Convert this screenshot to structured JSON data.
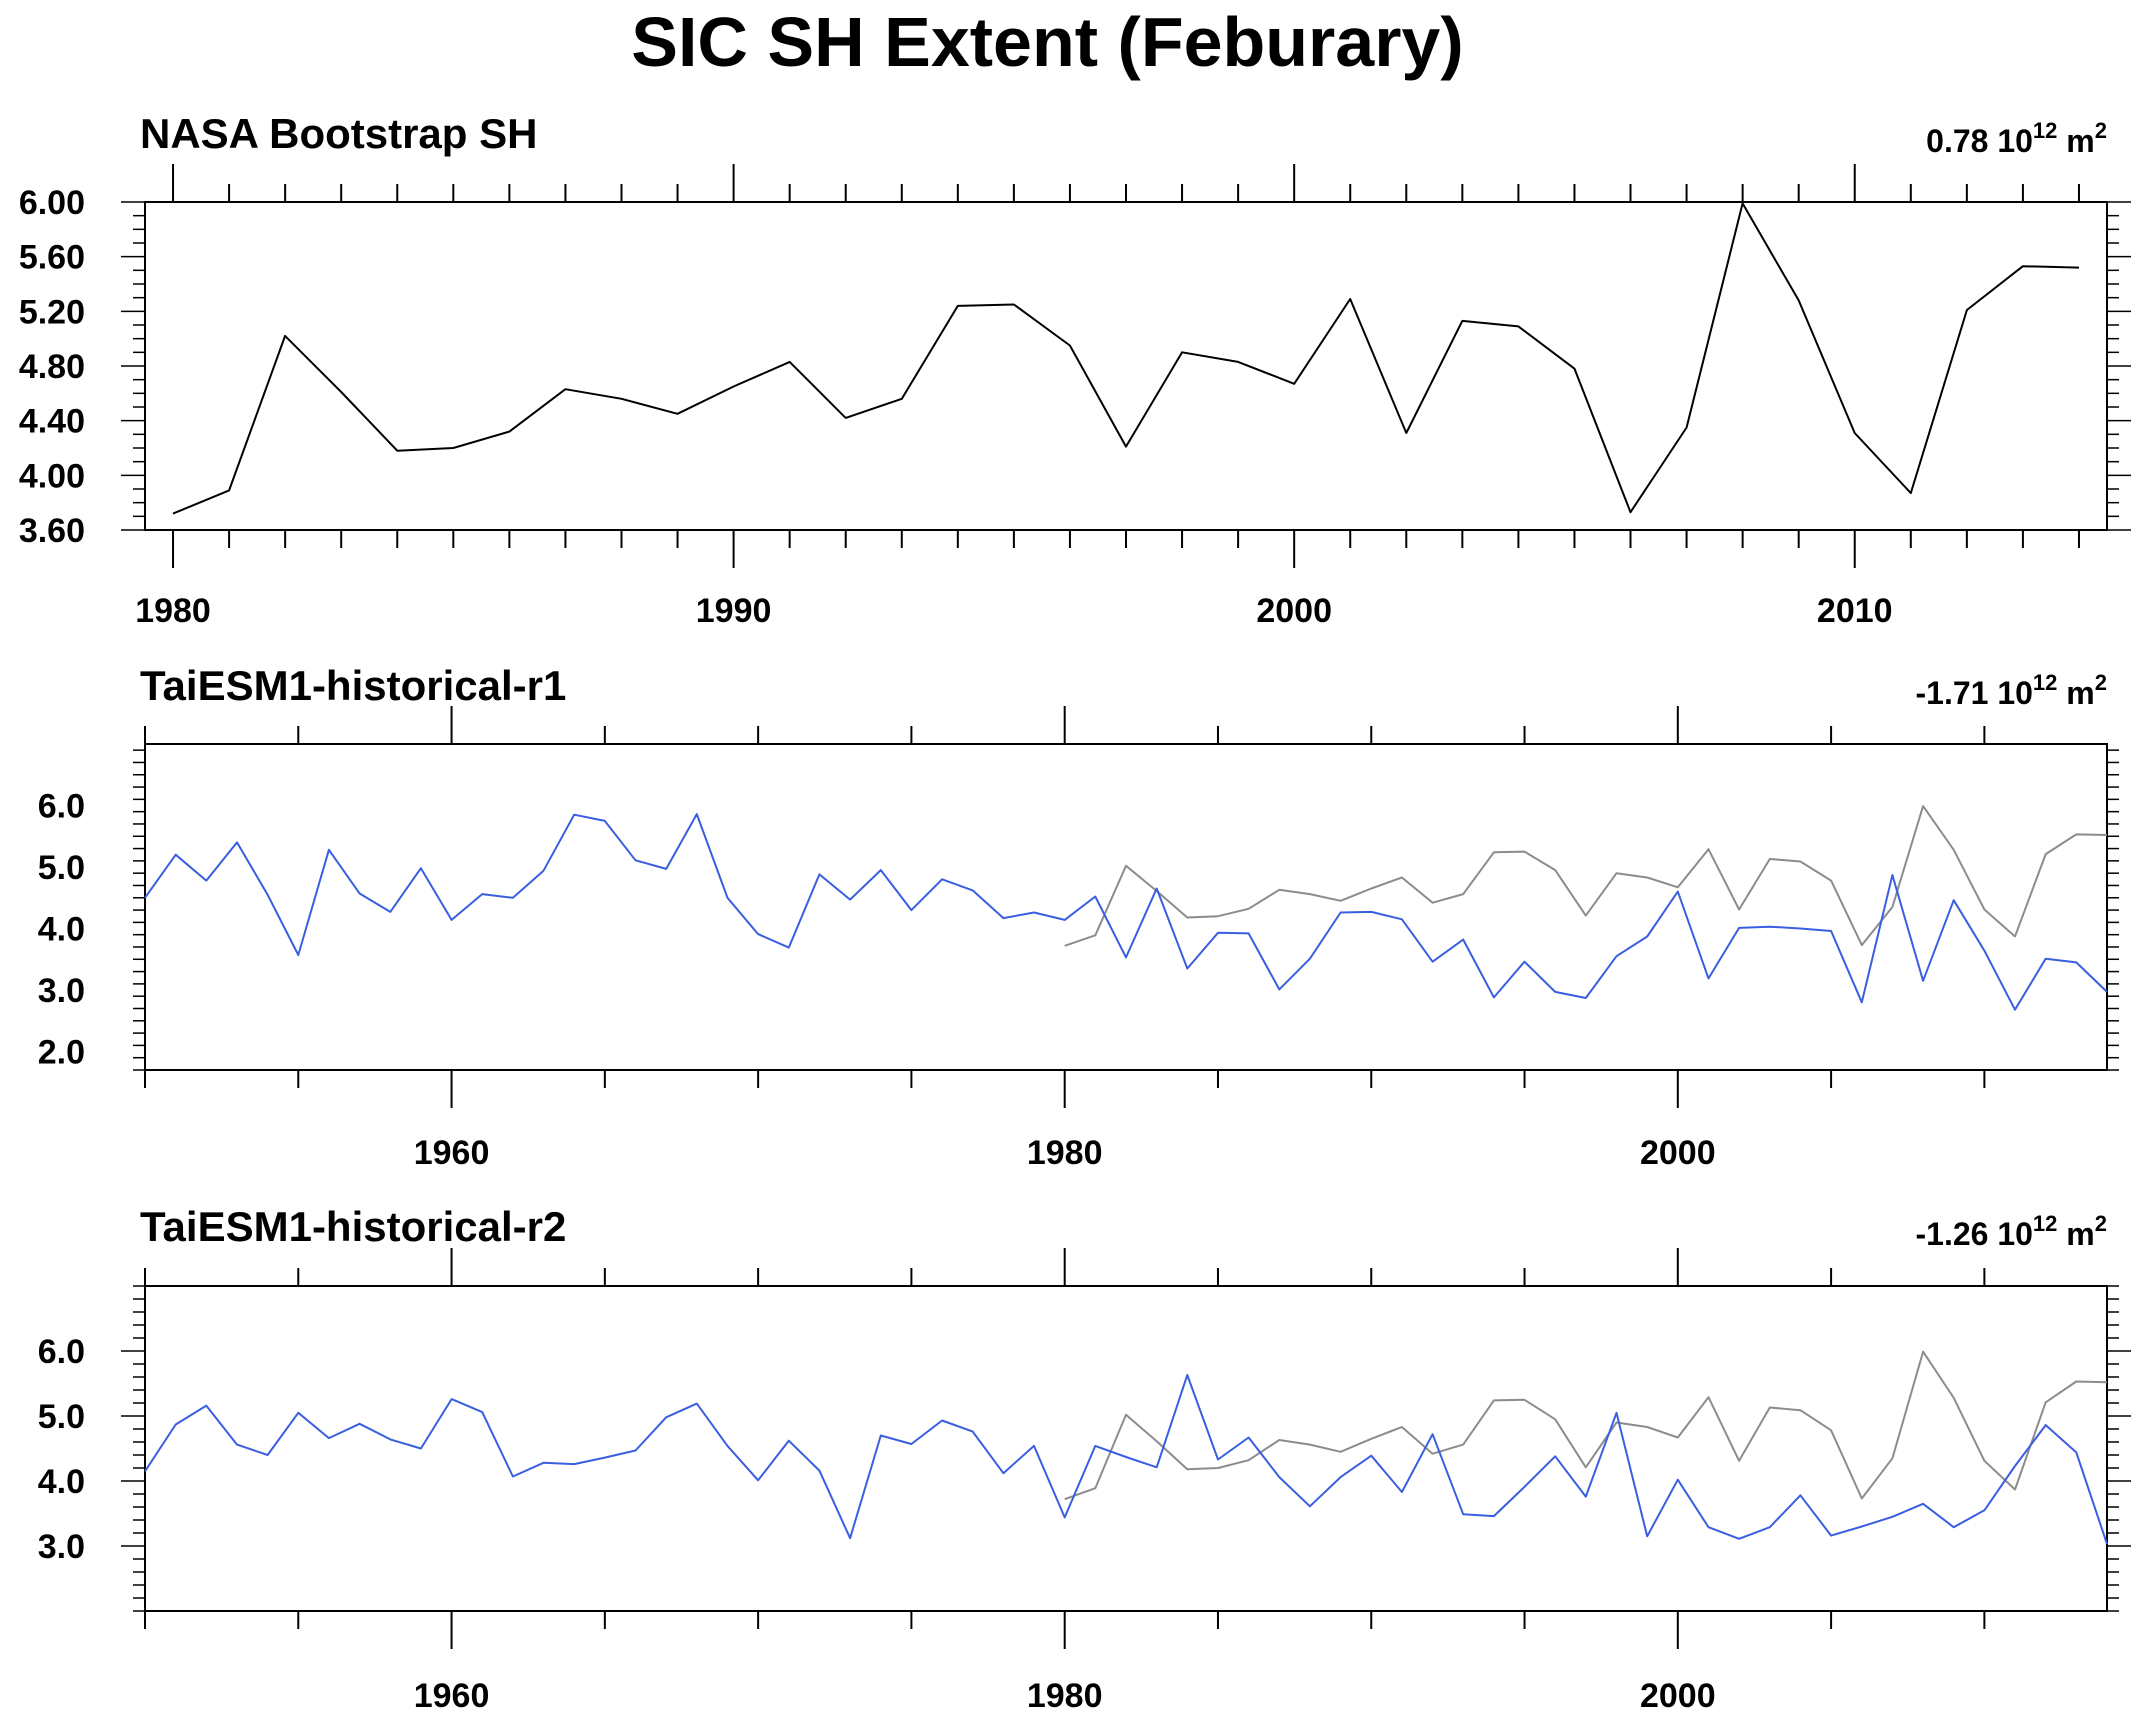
{
  "title": "SIC SH Extent (Feburary)",
  "colors": {
    "observed": "#000000",
    "observed_ref": "#8c8c8c",
    "model": "#3a5ee0"
  },
  "chart_data": [
    {
      "type": "line",
      "title": "NASA Bootstrap SH",
      "trend_label": {
        "value": "0.78 10",
        "exponent_text": "12",
        "unit": " m",
        "unit_exp": "2"
      },
      "xlim": [
        1980,
        2014
      ],
      "ylim": [
        3.6,
        6.0
      ],
      "yticks": [
        3.6,
        4.0,
        4.4,
        4.8,
        5.2,
        5.6,
        6.0
      ],
      "ytick_labels": [
        "3.60",
        "4.00",
        "4.40",
        "4.80",
        "5.20",
        "5.60",
        "6.00"
      ],
      "xticks": [
        1980,
        1990,
        2000,
        2010
      ],
      "xtick_labels": [
        "1980",
        "1990",
        "2000",
        "2010"
      ],
      "series": [
        {
          "color_key": "observed",
          "x": [
            1980,
            1981,
            1982,
            1983,
            1984,
            1985,
            1986,
            1987,
            1988,
            1989,
            1990,
            1991,
            1992,
            1993,
            1994,
            1995,
            1996,
            1997,
            1998,
            1999,
            2000,
            2001,
            2002,
            2003,
            2004,
            2005,
            2006,
            2007,
            2008,
            2009,
            2010,
            2011,
            2012,
            2013,
            2014
          ],
          "values": [
            3.72,
            3.89,
            5.02,
            4.61,
            4.18,
            4.2,
            4.32,
            4.63,
            4.56,
            4.45,
            4.65,
            4.83,
            4.42,
            4.56,
            5.24,
            5.25,
            4.95,
            4.21,
            4.9,
            4.83,
            4.67,
            5.29,
            4.31,
            5.13,
            5.09,
            4.78,
            3.73,
            4.35,
            5.99,
            5.28,
            4.31,
            3.87,
            5.21,
            5.53,
            5.52
          ]
        }
      ]
    },
    {
      "type": "line",
      "title": "TaiESM1-historical-r1",
      "trend_label": {
        "value": "-1.71 10",
        "exponent_text": "12",
        "unit": " m",
        "unit_exp": "2"
      },
      "xlim": [
        1950,
        2014
      ],
      "ylim": [
        1.7,
        7.0
      ],
      "yticks": [
        2.0,
        3.0,
        4.0,
        5.0,
        6.0
      ],
      "ytick_labels": [
        "2.0",
        "3.0",
        "4.0",
        "5.0",
        "6.0"
      ],
      "xticks": [
        1960,
        1980,
        2000
      ],
      "xtick_labels": [
        "1960",
        "1980",
        "2000"
      ],
      "series": [
        {
          "color_key": "model",
          "x": [
            1950,
            1951,
            1952,
            1953,
            1954,
            1955,
            1956,
            1957,
            1958,
            1959,
            1960,
            1961,
            1962,
            1963,
            1964,
            1965,
            1966,
            1967,
            1968,
            1969,
            1970,
            1971,
            1972,
            1973,
            1974,
            1975,
            1976,
            1977,
            1978,
            1979,
            1980,
            1981,
            1982,
            1983,
            1984,
            1985,
            1986,
            1987,
            1988,
            1989,
            1990,
            1991,
            1992,
            1993,
            1994,
            1995,
            1996,
            1997,
            1998,
            1999,
            2000,
            2001,
            2002,
            2003,
            2004,
            2005,
            2006,
            2007,
            2008,
            2009,
            2010,
            2011,
            2012,
            2013,
            2014
          ],
          "values": [
            4.5,
            5.2,
            4.78,
            5.4,
            4.55,
            3.57,
            5.28,
            4.57,
            4.27,
            4.98,
            4.14,
            4.56,
            4.5,
            4.94,
            5.85,
            5.75,
            5.11,
            4.97,
            5.86,
            4.5,
            3.91,
            3.69,
            4.88,
            4.47,
            4.95,
            4.3,
            4.8,
            4.62,
            4.17,
            4.26,
            4.14,
            4.52,
            3.53,
            4.65,
            3.35,
            3.93,
            3.92,
            3.01,
            3.51,
            4.26,
            4.27,
            4.15,
            3.46,
            3.82,
            2.88,
            3.46,
            2.97,
            2.87,
            3.55,
            3.87,
            4.6,
            3.19,
            4.01,
            4.03,
            4.0,
            3.96,
            2.8,
            4.87,
            3.15,
            4.46,
            3.64,
            2.68,
            3.51,
            3.45,
            2.97
          ]
        },
        {
          "color_key": "observed_ref",
          "x": [
            1980,
            1981,
            1982,
            1983,
            1984,
            1985,
            1986,
            1987,
            1988,
            1989,
            1990,
            1991,
            1992,
            1993,
            1994,
            1995,
            1996,
            1997,
            1998,
            1999,
            2000,
            2001,
            2002,
            2003,
            2004,
            2005,
            2006,
            2007,
            2008,
            2009,
            2010,
            2011,
            2012,
            2013,
            2014
          ],
          "values": [
            3.72,
            3.89,
            5.02,
            4.61,
            4.18,
            4.2,
            4.32,
            4.63,
            4.56,
            4.45,
            4.65,
            4.83,
            4.42,
            4.56,
            5.24,
            5.25,
            4.95,
            4.21,
            4.9,
            4.83,
            4.67,
            5.29,
            4.31,
            5.13,
            5.09,
            4.78,
            3.73,
            4.35,
            5.99,
            5.28,
            4.31,
            3.87,
            5.21,
            5.53,
            5.52
          ]
        }
      ]
    },
    {
      "type": "line",
      "title": "TaiESM1-historical-r2",
      "trend_label": {
        "value": "-1.26 10",
        "exponent_text": "12",
        "unit": " m",
        "unit_exp": "2"
      },
      "xlim": [
        1950,
        2014
      ],
      "ylim": [
        2.0,
        7.0
      ],
      "yticks": [
        3.0,
        4.0,
        5.0,
        6.0
      ],
      "ytick_labels": [
        "3.0",
        "4.0",
        "5.0",
        "6.0"
      ],
      "xticks": [
        1960,
        1980,
        2000
      ],
      "xtick_labels": [
        "1960",
        "1980",
        "2000"
      ],
      "series": [
        {
          "color_key": "model",
          "x": [
            1950,
            1951,
            1952,
            1953,
            1954,
            1955,
            1956,
            1957,
            1958,
            1959,
            1960,
            1961,
            1962,
            1963,
            1964,
            1965,
            1966,
            1967,
            1968,
            1969,
            1970,
            1971,
            1972,
            1973,
            1974,
            1975,
            1976,
            1977,
            1978,
            1979,
            1980,
            1981,
            1982,
            1983,
            1984,
            1985,
            1986,
            1987,
            1988,
            1989,
            1990,
            1991,
            1992,
            1993,
            1994,
            1995,
            1996,
            1997,
            1998,
            1999,
            2000,
            2001,
            2002,
            2003,
            2004,
            2005,
            2006,
            2007,
            2008,
            2009,
            2010,
            2011,
            2012,
            2013,
            2014
          ],
          "values": [
            4.15,
            4.87,
            5.16,
            4.56,
            4.4,
            5.05,
            4.66,
            4.88,
            4.64,
            4.5,
            5.26,
            5.06,
            4.07,
            4.28,
            4.26,
            4.36,
            4.47,
            4.98,
            5.19,
            4.54,
            4.01,
            4.62,
            4.16,
            3.12,
            4.7,
            4.57,
            4.93,
            4.76,
            4.12,
            4.54,
            3.44,
            4.54,
            4.37,
            4.21,
            5.63,
            4.33,
            4.67,
            4.06,
            3.61,
            4.06,
            4.39,
            3.83,
            4.72,
            3.49,
            3.46,
            3.91,
            4.38,
            3.76,
            5.05,
            3.15,
            4.02,
            3.29,
            3.11,
            3.29,
            3.78,
            3.16,
            3.3,
            3.45,
            3.65,
            3.29,
            3.55,
            4.23,
            4.86,
            4.44,
            3.03
          ]
        },
        {
          "color_key": "observed_ref",
          "x": [
            1980,
            1981,
            1982,
            1983,
            1984,
            1985,
            1986,
            1987,
            1988,
            1989,
            1990,
            1991,
            1992,
            1993,
            1994,
            1995,
            1996,
            1997,
            1998,
            1999,
            2000,
            2001,
            2002,
            2003,
            2004,
            2005,
            2006,
            2007,
            2008,
            2009,
            2010,
            2011,
            2012,
            2013,
            2014
          ],
          "values": [
            3.72,
            3.89,
            5.02,
            4.61,
            4.18,
            4.2,
            4.32,
            4.63,
            4.56,
            4.45,
            4.65,
            4.83,
            4.42,
            4.56,
            5.24,
            5.25,
            4.95,
            4.21,
            4.9,
            4.83,
            4.67,
            5.29,
            4.31,
            5.13,
            5.09,
            4.78,
            3.73,
            4.35,
            5.99,
            5.28,
            4.31,
            3.87,
            5.21,
            5.53,
            5.52
          ]
        }
      ]
    }
  ]
}
